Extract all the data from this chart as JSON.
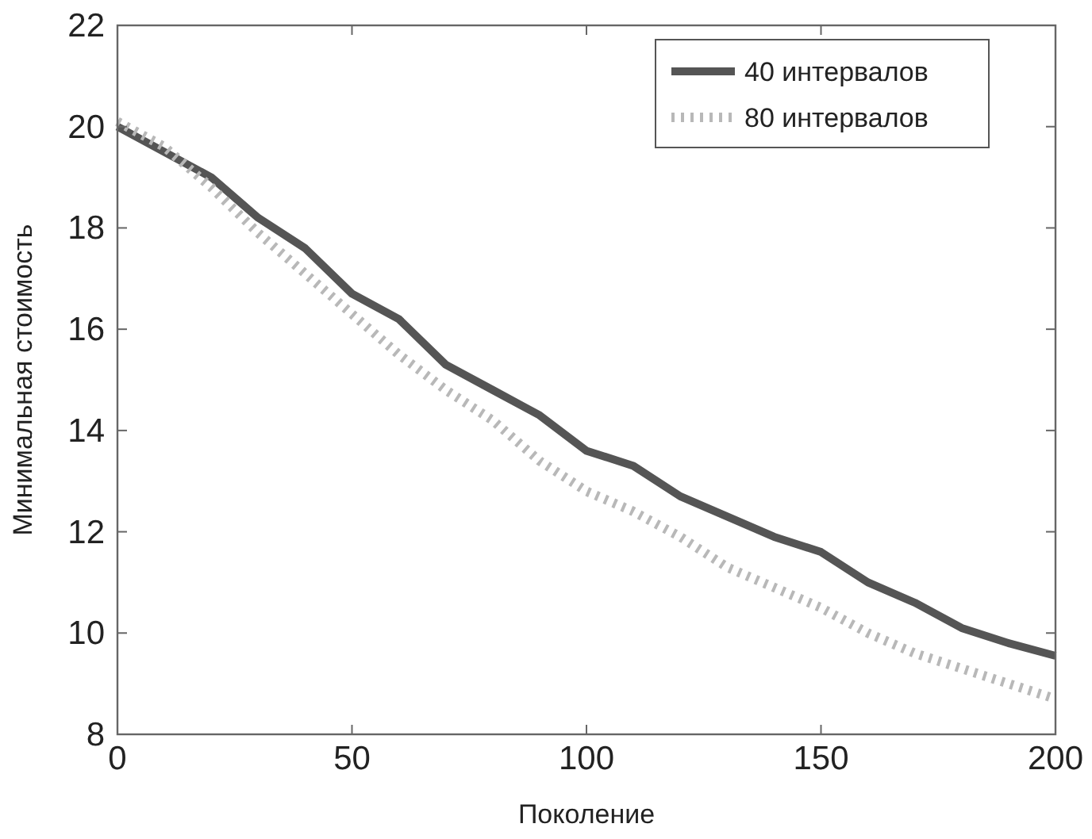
{
  "chart_data": {
    "type": "line",
    "xlabel": "Поколение",
    "ylabel": "Минимальная стоимость",
    "x": [
      0,
      10,
      20,
      30,
      40,
      50,
      60,
      70,
      80,
      90,
      100,
      110,
      120,
      130,
      140,
      150,
      160,
      170,
      180,
      190,
      200
    ],
    "xlim": [
      0,
      200
    ],
    "xticks": [
      0,
      50,
      100,
      150,
      200
    ],
    "ylim": [
      8,
      22
    ],
    "yticks": [
      8,
      10,
      12,
      14,
      16,
      18,
      20,
      22
    ],
    "grid": false,
    "legend": "top right",
    "series": [
      {
        "name": "40 интервалов",
        "color": "#555555",
        "line_style": "solid",
        "values": [
          20.0,
          19.5,
          19.0,
          18.2,
          17.6,
          16.7,
          16.2,
          15.3,
          14.8,
          14.3,
          13.6,
          13.3,
          12.7,
          12.3,
          11.9,
          11.6,
          11.0,
          10.6,
          10.1,
          9.8,
          9.55
        ]
      },
      {
        "name": "80 интервалов",
        "color": "#b8b8b8",
        "line_style": "dotted",
        "values": [
          20.1,
          19.6,
          18.8,
          17.9,
          17.1,
          16.3,
          15.5,
          14.8,
          14.2,
          13.4,
          12.8,
          12.4,
          11.9,
          11.3,
          10.9,
          10.5,
          10.0,
          9.6,
          9.3,
          9.0,
          8.7
        ]
      }
    ]
  }
}
